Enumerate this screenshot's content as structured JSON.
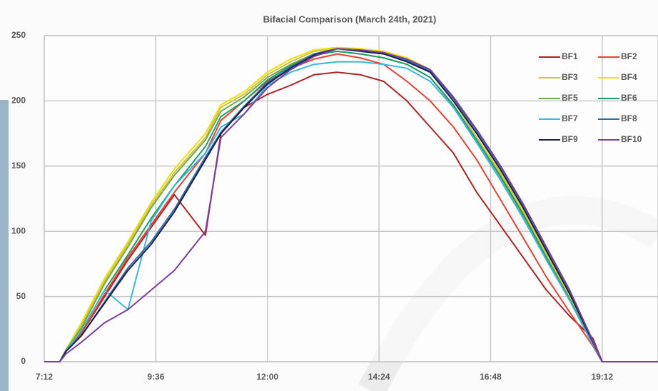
{
  "chart_data": {
    "type": "line",
    "title": "Bifacial Comparison (March 24th, 2021)",
    "x": [
      432,
      452,
      460,
      480,
      510,
      540,
      570,
      600,
      640,
      660,
      690,
      720,
      750,
      780,
      810,
      840,
      870,
      900,
      930,
      960,
      990,
      1020,
      1050,
      1080,
      1110,
      1140,
      1152,
      1224
    ],
    "series": [
      {
        "name": "BF1",
        "color": "#b22222",
        "values": [
          0,
          0,
          8,
          22,
          50,
          78,
          103,
          128,
          97,
          175,
          195,
          205,
          212,
          220,
          222,
          220,
          215,
          200,
          180,
          160,
          130,
          105,
          80,
          55,
          35,
          18,
          0,
          0
        ]
      },
      {
        "name": "BF2",
        "color": "#e8412f",
        "values": [
          0,
          0,
          8,
          22,
          52,
          80,
          105,
          130,
          160,
          185,
          200,
          215,
          225,
          232,
          236,
          233,
          228,
          215,
          200,
          180,
          155,
          125,
          95,
          65,
          38,
          12,
          0,
          0
        ]
      },
      {
        "name": "BF3",
        "color": "#d2c04a",
        "values": [
          0,
          0,
          9,
          28,
          62,
          90,
          120,
          145,
          172,
          195,
          205,
          220,
          230,
          238,
          240,
          240,
          237,
          232,
          222,
          200,
          172,
          145,
          115,
          82,
          50,
          14,
          0,
          0
        ]
      },
      {
        "name": "BF4",
        "color": "#f0e000",
        "values": [
          0,
          0,
          9,
          30,
          64,
          92,
          122,
          148,
          175,
          197,
          207,
          222,
          232,
          239,
          241,
          240,
          238,
          233,
          224,
          202,
          175,
          147,
          117,
          84,
          51,
          14,
          0,
          0
        ]
      },
      {
        "name": "BF5",
        "color": "#70ad47",
        "values": [
          0,
          0,
          9,
          26,
          60,
          88,
          118,
          143,
          170,
          192,
          203,
          218,
          228,
          236,
          238,
          236,
          233,
          228,
          218,
          196,
          170,
          142,
          112,
          80,
          48,
          13,
          0,
          0
        ]
      },
      {
        "name": "BF6",
        "color": "#1e9e6e",
        "values": [
          0,
          0,
          8,
          24,
          55,
          82,
          110,
          135,
          165,
          188,
          200,
          216,
          227,
          235,
          238,
          236,
          233,
          228,
          218,
          197,
          170,
          143,
          113,
          80,
          48,
          14,
          0,
          0
        ]
      },
      {
        "name": "BF7",
        "color": "#3ab7e0",
        "values": [
          0,
          0,
          8,
          24,
          55,
          40,
          108,
          135,
          160,
          180,
          190,
          212,
          222,
          228,
          230,
          230,
          228,
          225,
          215,
          195,
          168,
          140,
          110,
          78,
          47,
          13,
          0,
          0
        ]
      },
      {
        "name": "BF8",
        "color": "#2e6da4",
        "values": [
          0,
          0,
          8,
          20,
          46,
          72,
          92,
          117,
          157,
          176,
          196,
          214,
          226,
          236,
          240,
          239,
          237,
          231,
          223,
          202,
          177,
          150,
          120,
          87,
          54,
          16,
          0,
          0
        ]
      },
      {
        "name": "BF9",
        "color": "#1a2150",
        "values": [
          0,
          0,
          8,
          20,
          45,
          70,
          90,
          115,
          155,
          175,
          195,
          213,
          225,
          235,
          240,
          238,
          236,
          230,
          222,
          200,
          175,
          148,
          118,
          85,
          52,
          15,
          0,
          0
        ]
      },
      {
        "name": "BF10",
        "color": "#7b3fa0",
        "values": [
          0,
          0,
          6,
          15,
          30,
          40,
          55,
          70,
          100,
          172,
          190,
          210,
          224,
          234,
          240,
          239,
          237,
          232,
          224,
          203,
          178,
          151,
          121,
          88,
          55,
          16,
          0,
          0
        ]
      }
    ],
    "xlim": [
      432,
      1224
    ],
    "xticks": [
      {
        "value": 432,
        "label": "7:12"
      },
      {
        "value": 576,
        "label": "9:36"
      },
      {
        "value": 720,
        "label": "12:00"
      },
      {
        "value": 864,
        "label": "14:24"
      },
      {
        "value": 1008,
        "label": "16:48"
      },
      {
        "value": 1152,
        "label": "19:12"
      }
    ],
    "ylim": [
      0,
      250
    ],
    "yticks": [
      0,
      50,
      100,
      150,
      200,
      250
    ],
    "grid": true,
    "legend": "upper right"
  }
}
